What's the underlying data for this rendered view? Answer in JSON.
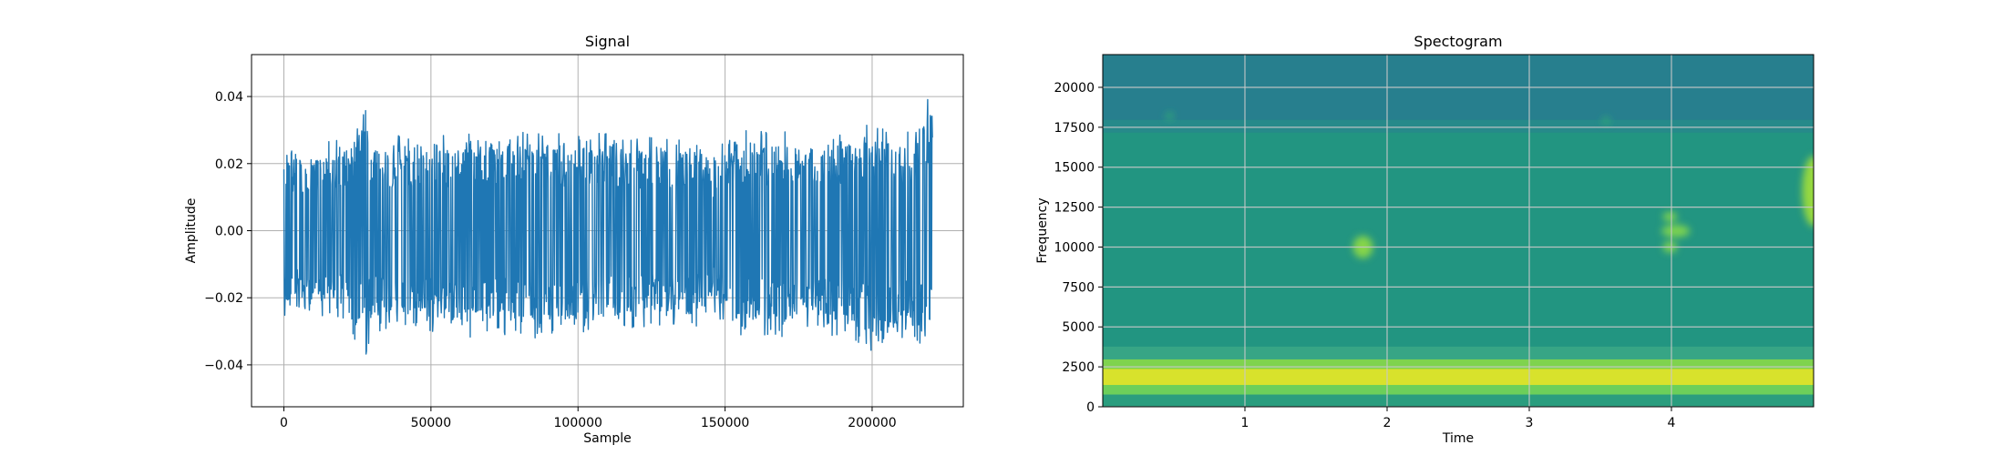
{
  "chart_data": [
    {
      "type": "line",
      "title": "Signal",
      "xlabel": "Sample",
      "ylabel": "Amplitude",
      "xlim": [
        -11000,
        231000
      ],
      "ylim": [
        -0.0525,
        0.0525
      ],
      "xticks": [
        0,
        50000,
        100000,
        150000,
        200000
      ],
      "xtick_labels": [
        "0",
        "50000",
        "100000",
        "150000",
        "200000"
      ],
      "yticks": [
        -0.04,
        -0.02,
        0.0,
        0.02,
        0.04
      ],
      "ytick_labels": [
        "−0.04",
        "−0.02",
        "0.00",
        "0.02",
        "0.04"
      ],
      "grid": true,
      "series": [
        {
          "color": "#1f77b4",
          "x_range": [
            0,
            220500
          ],
          "envelope": {
            "x": [
              0,
              10000,
              20000,
              27000,
              28000,
              29000,
              30000,
              40000,
              50000,
              60000,
              70000,
              80000,
              90000,
              100000,
              110000,
              120000,
              130000,
              140000,
              145000,
              150000,
              160000,
              170000,
              180000,
              190000,
              200000,
              210000,
              218000,
              220000
            ],
            "upper": [
              0.026,
              0.025,
              0.028,
              0.036,
              0.048,
              0.03,
              0.028,
              0.029,
              0.028,
              0.03,
              0.028,
              0.03,
              0.029,
              0.029,
              0.03,
              0.028,
              0.028,
              0.028,
              0.02,
              0.03,
              0.03,
              0.03,
              0.028,
              0.03,
              0.032,
              0.03,
              0.038,
              0.043
            ],
            "lower": [
              -0.026,
              -0.025,
              -0.028,
              -0.036,
              -0.047,
              -0.032,
              -0.03,
              -0.03,
              -0.03,
              -0.034,
              -0.03,
              -0.032,
              -0.032,
              -0.032,
              -0.03,
              -0.029,
              -0.028,
              -0.03,
              -0.022,
              -0.03,
              -0.032,
              -0.032,
              -0.03,
              -0.032,
              -0.036,
              -0.032,
              -0.036,
              -0.03
            ]
          }
        }
      ]
    },
    {
      "type": "heatmap",
      "title": "Spectogram",
      "xlabel": "Time",
      "ylabel": "Frequency",
      "xlim": [
        0,
        5.0
      ],
      "ylim": [
        0,
        22050
      ],
      "xticks": [
        1,
        2,
        3,
        4
      ],
      "xtick_labels": [
        "1",
        "2",
        "3",
        "4"
      ],
      "yticks": [
        0,
        2500,
        5000,
        7500,
        10000,
        12500,
        15000,
        17500,
        20000
      ],
      "ytick_labels": [
        "0",
        "2500",
        "5000",
        "7500",
        "10000",
        "12500",
        "15000",
        "17500",
        "20000"
      ],
      "grid": true,
      "colormap": "viridis",
      "bands": [
        {
          "from": 0,
          "to": 800,
          "color": "#2a9d7e"
        },
        {
          "from": 800,
          "to": 1400,
          "color": "#6ccf5a"
        },
        {
          "from": 1400,
          "to": 2400,
          "color": "#d8e22c"
        },
        {
          "from": 2400,
          "to": 3000,
          "color": "#7fd34e"
        },
        {
          "from": 3000,
          "to": 3800,
          "color": "#37a585"
        },
        {
          "from": 3800,
          "to": 17200,
          "color": "#229581"
        },
        {
          "from": 17200,
          "to": 18000,
          "color": "#268a8a"
        },
        {
          "from": 18000,
          "to": 22050,
          "color": "#277f8e"
        }
      ],
      "hotspots": [
        {
          "t": 1.83,
          "f": 10000,
          "color": "#86d549",
          "rt": 0.07,
          "rf": 700
        },
        {
          "t": 3.99,
          "f": 11900,
          "color": "#7ad151",
          "rt": 0.05,
          "rf": 300
        },
        {
          "t": 4.03,
          "f": 11000,
          "color": "#7ad151",
          "rt": 0.1,
          "rf": 400
        },
        {
          "t": 3.99,
          "f": 10000,
          "color": "#7ad151",
          "rt": 0.05,
          "rf": 350
        },
        {
          "t": 5.0,
          "f": 13500,
          "color": "#95d840",
          "rt": 0.08,
          "rf": 2200
        },
        {
          "t": 0.47,
          "f": 18200,
          "color": "#2fa37a",
          "rt": 0.03,
          "rf": 250
        },
        {
          "t": 3.54,
          "f": 17900,
          "color": "#2fa37a",
          "rt": 0.03,
          "rf": 250
        }
      ]
    }
  ]
}
